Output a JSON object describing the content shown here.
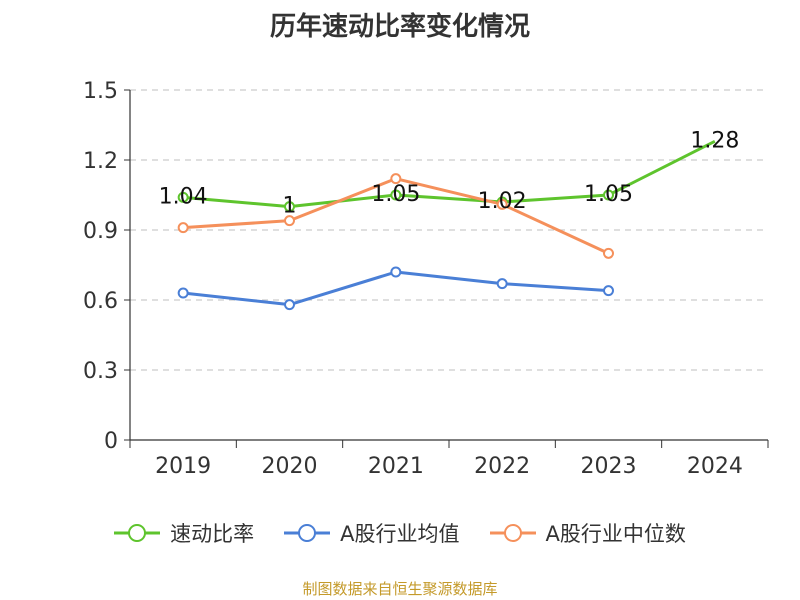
{
  "chart_data": {
    "type": "line",
    "title": "历年速动比率变化情况",
    "categories": [
      "2019",
      "2020",
      "2021",
      "2022",
      "2023",
      "2024"
    ],
    "ylim": [
      0,
      1.5
    ],
    "yticks": [
      "0",
      "0.3",
      "0.6",
      "0.9",
      "1.2",
      "1.5"
    ],
    "grid": true,
    "legend_position": "bottom",
    "series": [
      {
        "name": "速动比率",
        "color": "#5ec42d",
        "values": [
          1.04,
          1.0,
          1.05,
          1.02,
          1.05,
          1.28
        ],
        "labels": [
          "1.04",
          "1",
          "1.05",
          "1.02",
          "1.05",
          "1.28"
        ]
      },
      {
        "name": "A股行业均值",
        "color": "#4a7fd6",
        "values": [
          0.63,
          0.58,
          0.72,
          0.67,
          0.64,
          null
        ]
      },
      {
        "name": "A股行业中位数",
        "color": "#f5905b",
        "values": [
          0.91,
          0.94,
          1.12,
          1.01,
          0.8,
          null
        ]
      }
    ]
  },
  "source": "制图数据来自恒生聚源数据库"
}
